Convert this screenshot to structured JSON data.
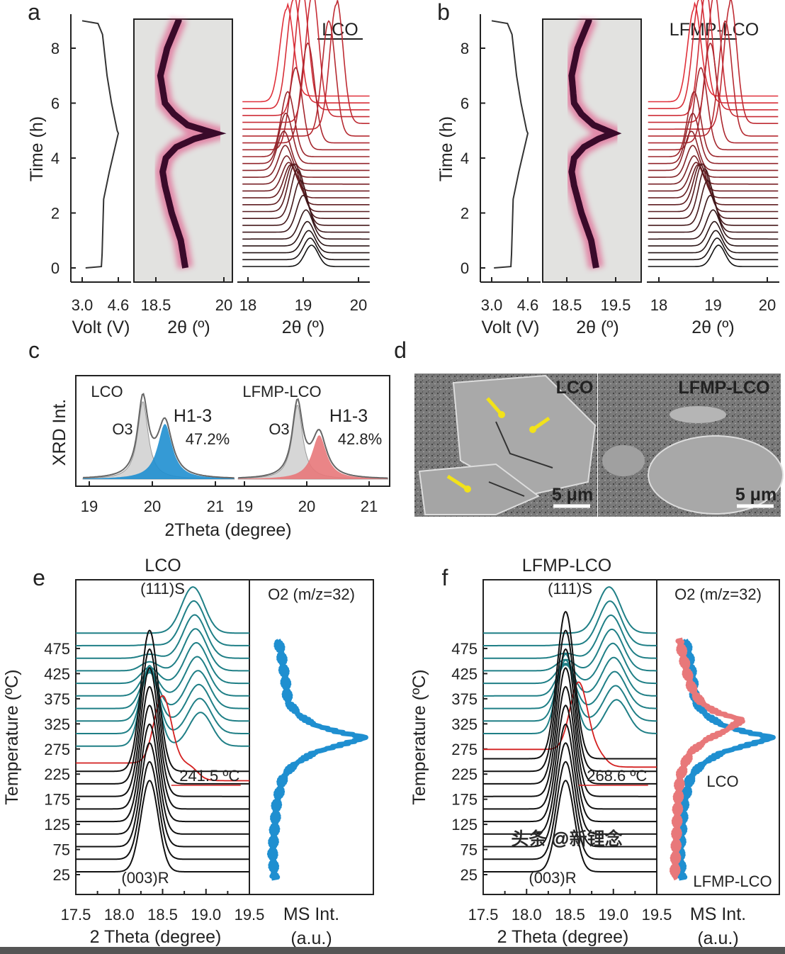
{
  "watermark": "头条 @新锂念",
  "chart_data": [
    {
      "panel": "a",
      "type": "line",
      "title": "LCO",
      "voltage": {
        "xlabel": "Volt (V)",
        "ylabel": "Time (h)",
        "xticks": [
          "3.0",
          "4.6"
        ],
        "yticks": [
          "0",
          "2",
          "4",
          "6",
          "8"
        ],
        "ylim": [
          0,
          9
        ],
        "points": [
          [
            0,
            3.15
          ],
          [
            0.05,
            3.85
          ],
          [
            0.5,
            3.88
          ],
          [
            2.5,
            3.95
          ],
          [
            3.5,
            4.2
          ],
          [
            4.9,
            4.6
          ],
          [
            5.0,
            4.55
          ],
          [
            6,
            4.3
          ],
          [
            7,
            4.1
          ],
          [
            8.5,
            3.9
          ],
          [
            8.9,
            3.7
          ],
          [
            9,
            3.0
          ]
        ]
      },
      "heatmap": {
        "type": "heatmap",
        "xlabel": "2θ (º)",
        "xticks": [
          "18.5",
          "20"
        ],
        "xlim": [
          18.5,
          20
        ],
        "peak_trace": {
          "time": [
            0,
            1,
            2,
            3,
            3.5,
            4,
            4.4,
            4.7,
            4.9,
            5.2,
            5.6,
            6,
            7,
            8,
            9
          ],
          "two_theta": [
            19.15,
            19.05,
            18.85,
            18.7,
            18.65,
            18.72,
            18.95,
            19.35,
            19.8,
            19.2,
            18.9,
            18.7,
            18.6,
            18.75,
            19.0
          ]
        }
      },
      "waterfall": {
        "xlabel": "2θ (º)",
        "xticks": [
          "18",
          "19",
          "20"
        ],
        "xlim": [
          17.9,
          20.2
        ],
        "time_range_h": [
          0,
          6
        ],
        "step_h": 0.25
      }
    },
    {
      "panel": "b",
      "type": "line",
      "title": "LFMP-LCO",
      "voltage": {
        "xlabel": "Volt (V)",
        "ylabel": "Time (h)",
        "xticks": [
          "3.0",
          "4.6"
        ],
        "yticks": [
          "0",
          "2",
          "4",
          "6",
          "8"
        ],
        "ylim": [
          0,
          9
        ],
        "points": [
          [
            0,
            3.1
          ],
          [
            0.05,
            3.85
          ],
          [
            0.5,
            3.88
          ],
          [
            2.5,
            3.95
          ],
          [
            3.5,
            4.2
          ],
          [
            4.9,
            4.6
          ],
          [
            5.0,
            4.55
          ],
          [
            6,
            4.3
          ],
          [
            7,
            4.1
          ],
          [
            8.5,
            3.9
          ],
          [
            8.9,
            3.7
          ],
          [
            9,
            3.0
          ]
        ]
      },
      "heatmap": {
        "type": "heatmap",
        "xlabel": "2θ (º)",
        "xticks": [
          "18.5",
          "19.5"
        ],
        "xlim": [
          18.0,
          20.0
        ],
        "peak_trace": {
          "time": [
            0,
            1,
            2,
            3,
            3.5,
            4,
            4.4,
            4.7,
            4.9,
            5.2,
            5.6,
            6,
            7,
            8,
            9
          ],
          "two_theta": [
            19.1,
            19.0,
            18.8,
            18.65,
            18.6,
            18.65,
            18.85,
            19.15,
            19.45,
            19.05,
            18.8,
            18.65,
            18.6,
            18.72,
            18.95
          ]
        }
      },
      "waterfall": {
        "xlabel": "2θ (º)",
        "xticks": [
          "18",
          "19",
          "20"
        ],
        "xlim": [
          17.8,
          20.2
        ],
        "time_range_h": [
          0,
          6
        ],
        "step_h": 0.25
      }
    },
    {
      "panel": "c",
      "type": "area",
      "xlabel": "2Theta (degree)",
      "ylabel": "XRD Int.",
      "xticks": [
        "19",
        "20",
        "21"
      ],
      "samples": [
        {
          "name": "LCO",
          "o3_label": "O3",
          "h13_label": "H1-3",
          "h13_fraction": "47.2%",
          "o3_peak": 19.85,
          "h13_peak": 20.2,
          "h13_color": "#1f8fd0"
        },
        {
          "name": "LFMP-LCO",
          "o3_label": "O3",
          "h13_label": "H1-3",
          "h13_fraction": "42.8%",
          "o3_peak": 19.85,
          "h13_peak": 20.2,
          "h13_color": "#e8787a"
        }
      ]
    },
    {
      "panel": "d",
      "type": "image",
      "images": [
        {
          "label": "LCO",
          "scale_bar": "5 μm"
        },
        {
          "label": "LFMP-LCO",
          "scale_bar": "5 μm"
        }
      ]
    },
    {
      "panel": "e",
      "type": "line",
      "title": "LCO",
      "xrd": {
        "xlabel": "2 Theta (degree)",
        "ylabel": "Temperature (ºC)",
        "xticks": [
          "17.5",
          "18.0",
          "18.5",
          "19.0",
          "19.5"
        ],
        "yticks": [
          "25",
          "75",
          "125",
          "175",
          "225",
          "275",
          "325",
          "375",
          "425",
          "475"
        ],
        "temperatures": [
          25,
          50,
          75,
          100,
          125,
          150,
          175,
          200,
          225,
          241.5,
          275,
          300,
          325,
          350,
          375,
          400,
          425,
          450,
          475,
          500
        ],
        "transition_temp_label": "241.5 ºC",
        "transition_temp": 241.5,
        "peak_003_label": "(003)R",
        "peak_111_label": "(111)S",
        "peak_003_deg": 18.35,
        "peak_111_deg": 18.85,
        "colors": {
          "layered": "#111111",
          "transition": "#d42020",
          "spinel": "#1f7f86"
        }
      },
      "ms": {
        "title": "O2 (m/z=32)",
        "xlabel": "MS Int.",
        "xlabel2": "(a.u.)",
        "series": [
          {
            "temps": [
              25,
              75,
              125,
              175,
              225,
              250,
              275,
              290,
              305,
              315,
              330,
              350,
              375,
              425,
              475,
              500
            ],
            "values": [
              0.12,
              0.1,
              0.12,
              0.14,
              0.2,
              0.3,
              0.5,
              0.75,
              1.0,
              0.75,
              0.5,
              0.35,
              0.25,
              0.22,
              0.18,
              0.15
            ],
            "color": "#1f8fd0"
          }
        ]
      }
    },
    {
      "panel": "f",
      "type": "line",
      "title": "LFMP-LCO",
      "xrd": {
        "xlabel": "2 Theta (degree)",
        "ylabel": "Temperature (ºC)",
        "xticks": [
          "17.5",
          "18.0",
          "18.5",
          "19.0",
          "19.5"
        ],
        "yticks": [
          "25",
          "75",
          "125",
          "175",
          "225",
          "275",
          "325",
          "375",
          "425",
          "475"
        ],
        "temperatures": [
          25,
          50,
          75,
          100,
          125,
          150,
          175,
          200,
          225,
          250,
          268.6,
          300,
          325,
          350,
          375,
          400,
          425,
          450,
          475,
          500
        ],
        "transition_temp_label": "268.6 ºC",
        "transition_temp": 268.6,
        "peak_003_label": "(003)R",
        "peak_111_label": "(111)S",
        "peak_003_deg": 18.45,
        "peak_111_deg": 18.95,
        "colors": {
          "layered": "#111111",
          "transition": "#d42020",
          "spinel": "#1f7f86"
        }
      },
      "ms": {
        "title": "O2 (m/z=32)",
        "xlabel": "MS Int.",
        "xlabel2": "(a.u.)",
        "series": [
          {
            "name": "LCO",
            "temps": [
              25,
              75,
              125,
              175,
              225,
              250,
              275,
              290,
              305,
              315,
              330,
              350,
              375,
              425,
              475,
              500
            ],
            "values": [
              0.12,
              0.1,
              0.12,
              0.14,
              0.2,
              0.3,
              0.5,
              0.75,
              1.0,
              0.75,
              0.5,
              0.35,
              0.25,
              0.22,
              0.18,
              0.15
            ],
            "color": "#1f8fd0"
          },
          {
            "name": "LFMP-LCO",
            "temps": [
              25,
              75,
              125,
              175,
              225,
              250,
              275,
              300,
              320,
              340,
              355,
              375,
              400,
              425,
              475,
              500
            ],
            "values": [
              0.05,
              0.06,
              0.07,
              0.08,
              0.1,
              0.14,
              0.2,
              0.35,
              0.55,
              0.7,
              0.45,
              0.3,
              0.22,
              0.18,
              0.12,
              0.1
            ],
            "color": "#e8787a"
          }
        ]
      }
    }
  ]
}
